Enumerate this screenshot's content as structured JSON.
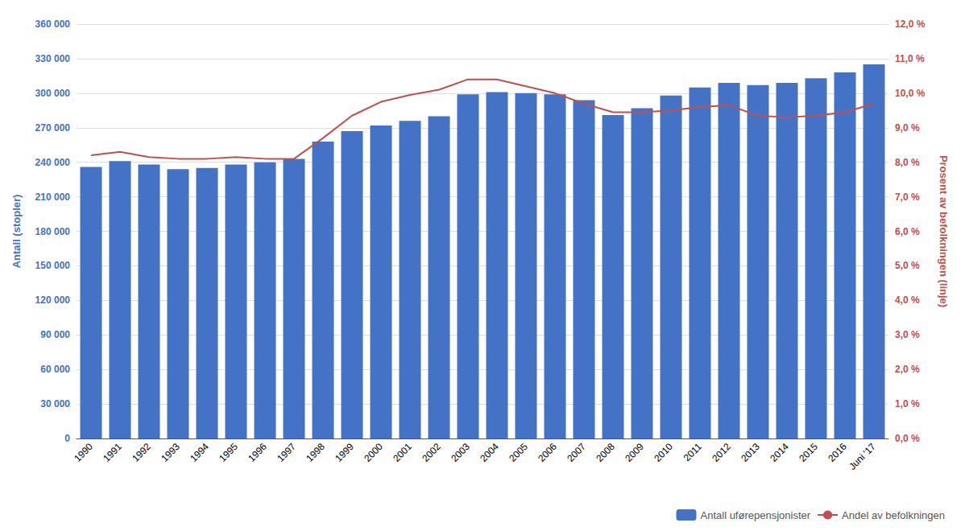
{
  "chart_data": {
    "type": "bar",
    "categories": [
      "1990",
      "1991",
      "1992",
      "1993",
      "1994",
      "1995",
      "1996",
      "1997",
      "1998",
      "1999",
      "2000",
      "2001",
      "2002",
      "2003",
      "2004",
      "2005",
      "2006",
      "2007",
      "2008",
      "2009",
      "2010",
      "2011",
      "2012",
      "2013",
      "2014",
      "2015",
      "2016",
      "Juni '17"
    ],
    "series": [
      {
        "name": "Antall uførepensjonister",
        "type": "bar",
        "color": "#4472C4",
        "values": [
          236000,
          241000,
          238000,
          234000,
          235000,
          238000,
          240000,
          243000,
          258000,
          267000,
          272000,
          276000,
          280000,
          299000,
          301000,
          300000,
          299000,
          294000,
          281000,
          287000,
          298000,
          305000,
          309000,
          307000,
          309000,
          313000,
          318000,
          325000
        ]
      },
      {
        "name": "Andel av befolkningen",
        "type": "line",
        "color": "#C0504D",
        "axis": "y2",
        "values": [
          8.2,
          8.3,
          8.15,
          8.1,
          8.1,
          8.15,
          8.1,
          8.1,
          8.7,
          9.35,
          9.75,
          9.95,
          10.1,
          10.4,
          10.4,
          10.2,
          10.0,
          9.7,
          9.45,
          9.45,
          9.5,
          9.6,
          9.65,
          9.35,
          9.3,
          9.35,
          9.45,
          9.7
        ]
      }
    ],
    "ylabel": "Antall (stopler)",
    "y2label": "Prosent av befolkningen (linje)",
    "ylim": [
      0,
      360000
    ],
    "yticks": [
      0,
      {
        "value": 30000,
        "label": "30 000"
      },
      {
        "value": 60000,
        "label": "60 000"
      },
      {
        "value": 90000,
        "label": "90 000"
      },
      {
        "value": 120000,
        "label": "120 000"
      },
      {
        "value": 150000,
        "label": "150 000"
      },
      {
        "value": 180000,
        "label": "180 000"
      },
      {
        "value": 210000,
        "label": "210 000"
      },
      {
        "value": 240000,
        "label": "240 000"
      },
      {
        "value": 270000,
        "label": "270 000"
      },
      {
        "value": 300000,
        "label": "300 000"
      },
      {
        "value": 330000,
        "label": "330 000"
      },
      {
        "value": 360000,
        "label": "360 000"
      }
    ],
    "y2lim": [
      0.0,
      12.0
    ],
    "y2ticks": [
      {
        "value": 0.0,
        "label": "0,0 %"
      },
      {
        "value": 1.0,
        "label": "1,0 %"
      },
      {
        "value": 2.0,
        "label": "2,0 %"
      },
      {
        "value": 3.0,
        "label": "3,0 %"
      },
      {
        "value": 4.0,
        "label": "4,0 %"
      },
      {
        "value": 5.0,
        "label": "5,0 %"
      },
      {
        "value": 6.0,
        "label": "6,0 %"
      },
      {
        "value": 7.0,
        "label": "7,0 %"
      },
      {
        "value": 8.0,
        "label": "8,0 %"
      },
      {
        "value": 9.0,
        "label": "9,0 %"
      },
      {
        "value": 10.0,
        "label": "10,0 %"
      },
      {
        "value": 11.0,
        "label": "11,0 %"
      },
      {
        "value": 12.0,
        "label": "12,0 %"
      }
    ],
    "grid": true,
    "legend": "lower right"
  }
}
